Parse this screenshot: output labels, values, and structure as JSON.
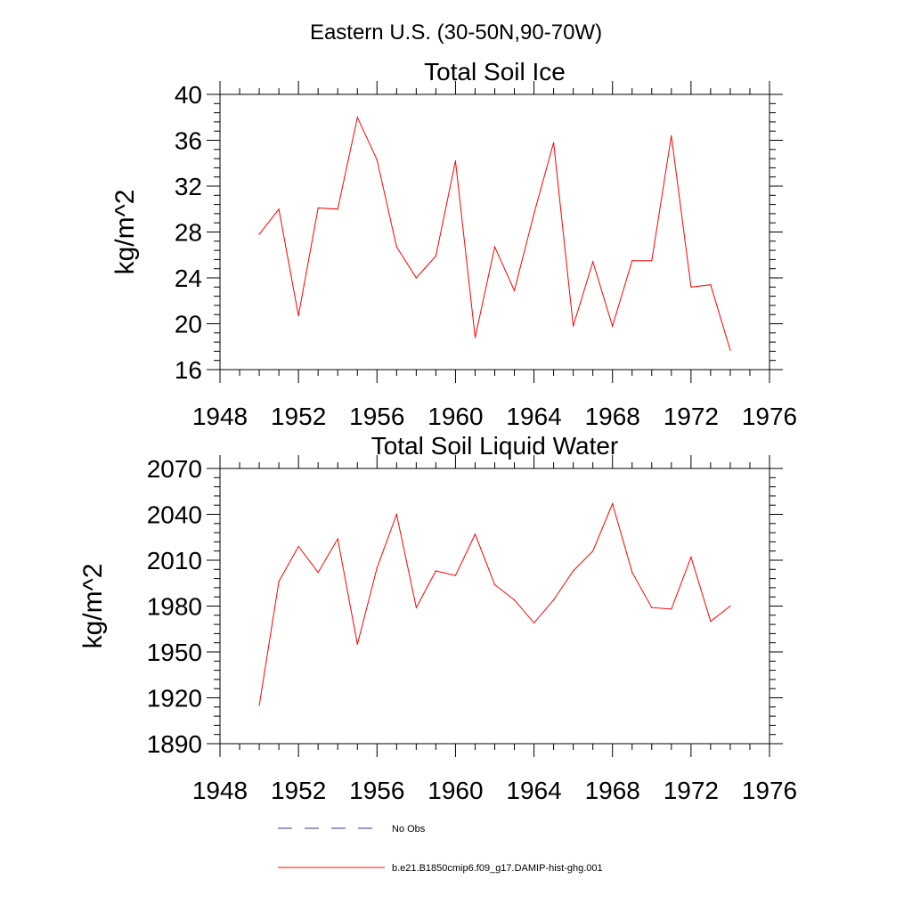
{
  "figure": {
    "title": "Eastern U.S. (30-50N,90-70W)",
    "colors": {
      "series": "#ff0000",
      "no_obs": "#3a3a8c",
      "axes": "#000000"
    }
  },
  "legend": {
    "placement": "bottom",
    "entries": [
      {
        "label": "No Obs",
        "style": "dashed"
      },
      {
        "label": "b.e21.B1850cmip6.f09_g17.DAMIP-hist-ghg.001",
        "style": "solid"
      }
    ]
  },
  "chart_data": [
    {
      "type": "line",
      "title": "Total Soil Ice",
      "ylabel": "kg/m^2",
      "xlabel": "",
      "xlim": [
        1948,
        1976
      ],
      "ylim": [
        16,
        40
      ],
      "xticks": [
        1948,
        1952,
        1956,
        1960,
        1964,
        1968,
        1972,
        1976
      ],
      "yticks": [
        16,
        20,
        24,
        28,
        32,
        36,
        40
      ],
      "x": [
        1950,
        1951,
        1952,
        1953,
        1954,
        1955,
        1956,
        1957,
        1958,
        1959,
        1960,
        1961,
        1962,
        1963,
        1964,
        1965,
        1966,
        1967,
        1968,
        1969,
        1970,
        1971,
        1972,
        1973,
        1974
      ],
      "series": [
        {
          "values": [
            27.8,
            30.0,
            20.7,
            30.1,
            30.0,
            38.0,
            34.3,
            26.7,
            24.0,
            25.9,
            34.2,
            18.8,
            26.7,
            22.9,
            29.6,
            35.8,
            19.8,
            25.4,
            19.8,
            25.5,
            25.5,
            36.4,
            23.2,
            23.4,
            17.7
          ]
        }
      ]
    },
    {
      "type": "line",
      "title": "Total Soil Liquid Water",
      "ylabel": "kg/m^2",
      "xlabel": "",
      "xlim": [
        1948,
        1976
      ],
      "ylim": [
        1890,
        2070
      ],
      "xticks": [
        1948,
        1952,
        1956,
        1960,
        1964,
        1968,
        1972,
        1976
      ],
      "yticks": [
        1890,
        1920,
        1950,
        1980,
        2010,
        2040,
        2070
      ],
      "x": [
        1950,
        1951,
        1952,
        1953,
        1954,
        1955,
        1956,
        1957,
        1958,
        1959,
        1960,
        1961,
        1962,
        1963,
        1964,
        1965,
        1966,
        1967,
        1968,
        1969,
        1970,
        1971,
        1972,
        1973,
        1974
      ],
      "series": [
        {
          "values": [
            1915,
            1996,
            2019,
            2002,
            2024,
            1955,
            2005,
            2040,
            1979,
            2003,
            2000,
            2027,
            1994,
            1984,
            1969,
            1984,
            2003,
            2016,
            2047,
            2002,
            1979,
            1978,
            2012,
            1970,
            1980
          ]
        }
      ]
    }
  ]
}
